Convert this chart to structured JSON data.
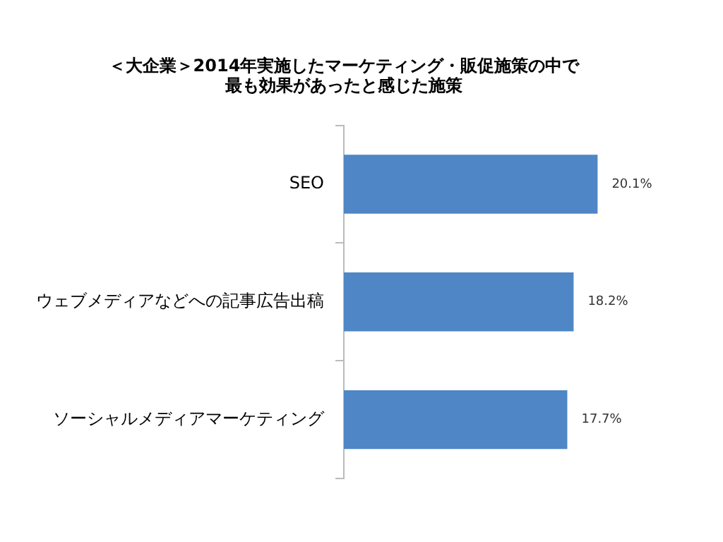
{
  "chart_data": {
    "type": "bar",
    "orientation": "horizontal",
    "title": "＜大企業＞2014年実施したマーケティング・販促施策の中で最も効果があったと感じた施策",
    "categories": [
      "SEO",
      "ウェブメディアなどへの記事広告出稿",
      "ソーシャルメディアマーケティング"
    ],
    "values": [
      20.1,
      18.2,
      17.7
    ],
    "value_labels": [
      "20.1%",
      "18.2%",
      "17.7%"
    ],
    "color": "#4f86c6",
    "tick_labels": "y",
    "grid": false,
    "legend": false
  }
}
